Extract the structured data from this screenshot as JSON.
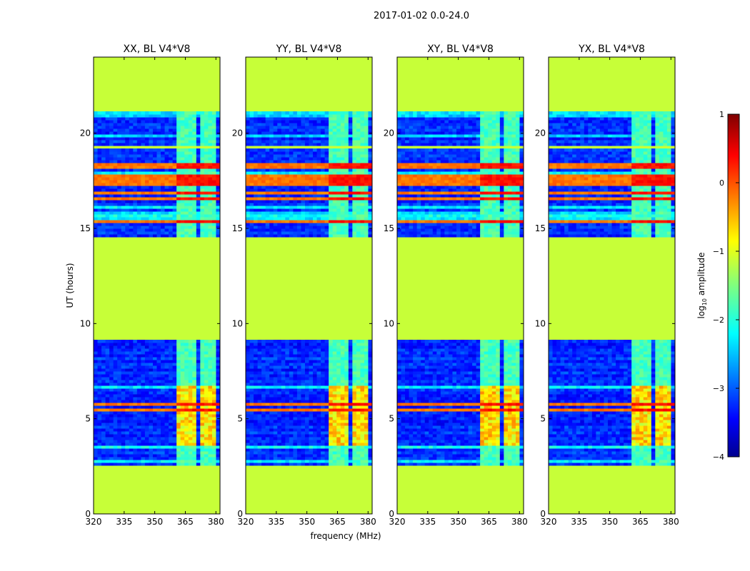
{
  "figure_title": "2017-01-02 0.0-24.0",
  "chart_data": {
    "type": "heatmap",
    "suptitle": "2017-01-02 0.0-24.0",
    "xlabel": "frequency (MHz)",
    "ylabel": "UT (hours)",
    "xlim": [
      320,
      382
    ],
    "ylim": [
      0,
      24
    ],
    "xticks": [
      320,
      335,
      350,
      365,
      380
    ],
    "xtick_labels": [
      "320",
      "335",
      "350",
      "365",
      "380"
    ],
    "yticks": [
      0,
      5,
      10,
      15,
      20
    ],
    "ytick_labels": [
      "0",
      "5",
      "10",
      "15",
      "20"
    ],
    "panels": [
      {
        "title": "XX, BL V4*V8",
        "pol": "XX"
      },
      {
        "title": "YY, BL V4*V8",
        "pol": "YY"
      },
      {
        "title": "XY, BL V4*V8",
        "pol": "XY"
      },
      {
        "title": "YX, BL V4*V8",
        "pol": "YX"
      }
    ],
    "flagged_ut_ranges": [
      [
        0,
        2.5
      ],
      [
        9.2,
        14.5
      ],
      [
        19.2,
        19.4
      ],
      [
        21.1,
        24
      ]
    ],
    "observed_ut_ranges": [
      [
        2.5,
        9.2
      ],
      [
        14.5,
        21.1
      ]
    ],
    "bright_channel_blocks_mhz": [
      [
        361.5,
        366
      ],
      [
        367,
        370.5
      ],
      [
        372,
        375.5
      ],
      [
        377,
        381
      ]
    ],
    "strong_rfi_rows_ut": [
      2.45,
      5.5,
      5.75,
      15.4,
      16.6,
      16.9,
      17.4,
      17.7,
      18.2,
      18.4,
      19.3
    ],
    "colorbar": {
      "label_prefix": "log",
      "label_sub": "10",
      "label_suffix": " amplitude",
      "min": -4,
      "max": 1,
      "ticks": [
        -4,
        -3,
        -2,
        -1,
        0,
        1
      ],
      "tick_labels": [
        "−4",
        "−3",
        "−2",
        "−1",
        "0",
        "1"
      ]
    }
  }
}
